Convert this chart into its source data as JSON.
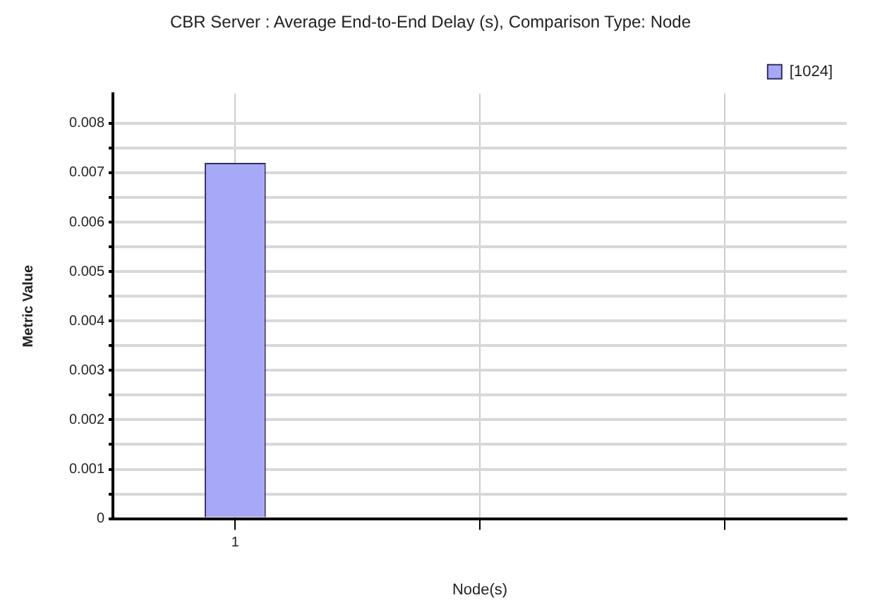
{
  "chart_data": {
    "type": "bar",
    "title": "CBR Server : Average End-to-End Delay (s), Comparison Type: Node",
    "xlabel": "Node(s)",
    "ylabel": "Metric Value",
    "categories": [
      "1",
      null,
      null
    ],
    "series": [
      {
        "name": "[1024]",
        "color": "#a8a8f8",
        "values": [
          0.0072,
          null,
          null
        ]
      }
    ],
    "ylim": [
      0,
      0.0086
    ],
    "yticks": [
      0,
      {
        "value": 0.0005,
        "label": null
      },
      0.001,
      {
        "value": 0.0015,
        "label": null
      },
      0.002,
      {
        "value": 0.0025,
        "label": null
      },
      0.003,
      {
        "value": 0.0035,
        "label": null
      },
      0.004,
      {
        "value": 0.0045,
        "label": null
      },
      0.005,
      {
        "value": 0.0055,
        "label": null
      },
      0.006,
      {
        "value": 0.0065,
        "label": null
      },
      0.007,
      {
        "value": 0.0075,
        "label": null
      },
      0.008
    ],
    "grid": true,
    "legend": "top right"
  }
}
